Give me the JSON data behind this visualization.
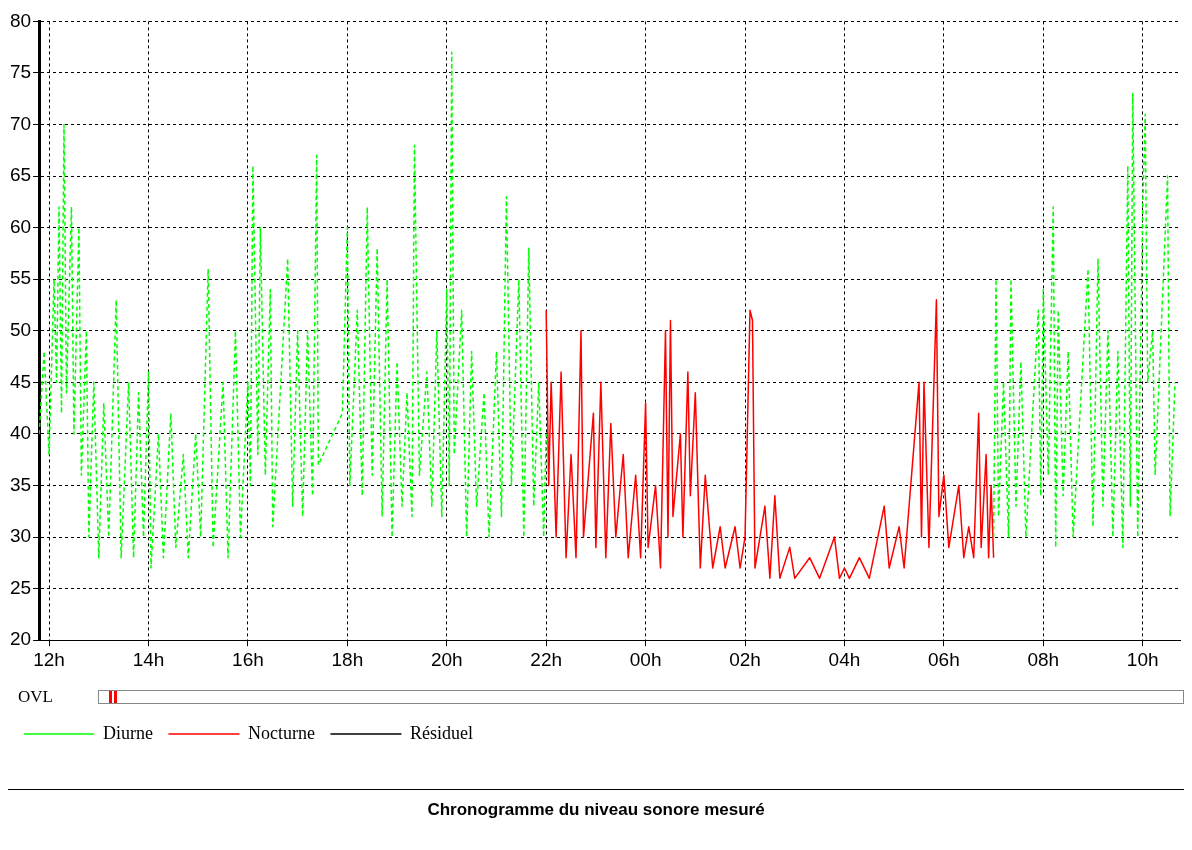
{
  "chart_data": {
    "type": "line",
    "title": "Chronogramme du niveau sonore mesuré",
    "annotations": [
      "OVL"
    ],
    "xlim": [
      "--01-01T11:48",
      "--01-02T10:45"
    ],
    "xticks": [
      {
        "value": "--01-01T12:00",
        "label": "12h"
      },
      {
        "value": "--01-01T14:00",
        "label": "14h"
      },
      {
        "value": "--01-01T16:00",
        "label": "16h"
      },
      {
        "value": "--01-01T18:00",
        "label": "18h"
      },
      {
        "value": "--01-01T20:00",
        "label": "20h"
      },
      {
        "value": "--01-01T22:00",
        "label": "22h"
      },
      {
        "value": "--01-02T00:00",
        "label": "00h"
      },
      {
        "value": "--01-02T02:00",
        "label": "02h"
      },
      {
        "value": "--01-02T04:00",
        "label": "04h"
      },
      {
        "value": "--01-02T06:00",
        "label": "06h"
      },
      {
        "value": "--01-02T08:00",
        "label": "08h"
      },
      {
        "value": "--01-02T10:00",
        "label": "10h"
      }
    ],
    "ylim": [
      20,
      80
    ],
    "yticks": [
      20,
      25,
      30,
      35,
      40,
      45,
      50,
      55,
      60,
      65,
      70,
      75,
      80
    ],
    "grid": true,
    "legend": "bottom",
    "marker": "none",
    "series": [
      {
        "name": "Diurne",
        "color": "#00ff00",
        "line_style": "dashed",
        "x": [
          "--01-01T11:48",
          "--01-01T11:54",
          "--01-01T12:00",
          "--01-01T12:06",
          "--01-01T12:09",
          "--01-01T12:12",
          "--01-01T12:15",
          "--01-01T12:18",
          "--01-01T12:21",
          "--01-01T12:27",
          "--01-01T12:30",
          "--01-01T12:36",
          "--01-01T12:39",
          "--01-01T12:45",
          "--01-01T12:48",
          "--01-01T12:54",
          "--01-01T13:00",
          "--01-01T13:06",
          "--01-01T13:12",
          "--01-01T13:21",
          "--01-01T13:27",
          "--01-01T13:36",
          "--01-01T13:42",
          "--01-01T13:48",
          "--01-01T13:54",
          "--01-01T14:00",
          "--01-01T14:03",
          "--01-01T14:12",
          "--01-01T14:18",
          "--01-01T14:27",
          "--01-01T14:33",
          "--01-01T14:42",
          "--01-01T14:48",
          "--01-01T14:57",
          "--01-01T15:03",
          "--01-01T15:12",
          "--01-01T15:18",
          "--01-01T15:30",
          "--01-01T15:36",
          "--01-01T15:45",
          "--01-01T15:51",
          "--01-01T16:00",
          "--01-01T16:03",
          "--01-01T16:06",
          "--01-01T16:12",
          "--01-01T16:15",
          "--01-01T16:21",
          "--01-01T16:27",
          "--01-01T16:30",
          "--01-01T16:48",
          "--01-01T16:54",
          "--01-01T17:00",
          "--01-01T17:06",
          "--01-01T17:12",
          "--01-01T17:18",
          "--01-01T17:23",
          "--01-01T17:25",
          "--01-01T17:54",
          "--01-01T18:00",
          "--01-01T18:03",
          "--01-01T18:12",
          "--01-01T18:18",
          "--01-01T18:24",
          "--01-01T18:30",
          "--01-01T18:36",
          "--01-01T18:42",
          "--01-01T18:48",
          "--01-01T18:54",
          "--01-01T19:00",
          "--01-01T19:06",
          "--01-01T19:12",
          "--01-01T19:18",
          "--01-01T19:21",
          "--01-01T19:27",
          "--01-01T19:36",
          "--01-01T19:42",
          "--01-01T19:48",
          "--01-01T19:54",
          "--01-01T20:00",
          "--01-01T20:03",
          "--01-01T20:06",
          "--01-01T20:09",
          "--01-01T20:18",
          "--01-01T20:24",
          "--01-01T20:30",
          "--01-01T20:36",
          "--01-01T20:45",
          "--01-01T20:51",
          "--01-01T21:00",
          "--01-01T21:06",
          "--01-01T21:12",
          "--01-01T21:18",
          "--01-01T21:27",
          "--01-01T21:33",
          "--01-01T21:39",
          "--01-01T21:45",
          "--01-01T21:51",
          "--01-01T21:57",
          "--01-01T22:00",
          "--01-02T02:00",
          "--01-02T07:00",
          "--01-02T07:03",
          "--01-02T07:06",
          "--01-02T07:12",
          "--01-02T07:18",
          "--01-02T07:21",
          "--01-02T07:27",
          "--01-02T07:33",
          "--01-02T07:39",
          "--01-02T07:54",
          "--01-02T07:57",
          "--01-02T08:00",
          "--01-02T08:06",
          "--01-02T08:12",
          "--01-02T08:15",
          "--01-02T08:18",
          "--01-02T08:24",
          "--01-02T08:30",
          "--01-02T08:36",
          "--01-02T08:54",
          "--01-02T09:00",
          "--01-02T09:06",
          "--01-02T09:12",
          "--01-02T09:18",
          "--01-02T09:24",
          "--01-02T09:30",
          "--01-02T09:36",
          "--01-02T09:42",
          "--01-02T09:45",
          "--01-02T09:48",
          "--01-02T09:54",
          "--01-02T10:00",
          "--01-02T10:03",
          "--01-02T10:06",
          "--01-02T10:12",
          "--01-02T10:15",
          "--01-02T10:30",
          "--01-02T10:33",
          "--01-02T10:39"
        ],
        "values": [
          40,
          48,
          38,
          55,
          45,
          62,
          42,
          70,
          44,
          62,
          40,
          60,
          36,
          50,
          30,
          45,
          28,
          43,
          30,
          53,
          28,
          45,
          28,
          44,
          30,
          46,
          27,
          40,
          28,
          42,
          29,
          38,
          28,
          40,
          30,
          56,
          29,
          45,
          28,
          50,
          30,
          45,
          35,
          66,
          38,
          60,
          36,
          54,
          31,
          57,
          33,
          50,
          32,
          50,
          34,
          67,
          37,
          42,
          60,
          35,
          52,
          34,
          62,
          36,
          58,
          32,
          55,
          30,
          47,
          33,
          44,
          32,
          68,
          36,
          46,
          33,
          50,
          32,
          54,
          35,
          77,
          38,
          52,
          30,
          48,
          33,
          44,
          30,
          48,
          32,
          63,
          35,
          55,
          30,
          58,
          33,
          45,
          30,
          40,
          null,
          30,
          55,
          32,
          45,
          30,
          55,
          33,
          47,
          30,
          52,
          34,
          54,
          36,
          62,
          29,
          52,
          34,
          48,
          30,
          56,
          31,
          57,
          33,
          50,
          30,
          48,
          29,
          66,
          33,
          73,
          30,
          62,
          71,
          45,
          50,
          36,
          65,
          32,
          45
        ]
      },
      {
        "name": "Nocturne",
        "color": "#ff0000",
        "line_style": "solid",
        "x": [
          "--01-01T22:00",
          "--01-01T22:03",
          "--01-01T22:06",
          "--01-01T22:12",
          "--01-01T22:18",
          "--01-01T22:24",
          "--01-01T22:30",
          "--01-01T22:36",
          "--01-01T22:42",
          "--01-01T22:45",
          "--01-01T22:57",
          "--01-01T23:00",
          "--01-01T23:06",
          "--01-01T23:12",
          "--01-01T23:18",
          "--01-01T23:24",
          "--01-01T23:33",
          "--01-01T23:39",
          "--01-01T23:48",
          "--01-01T23:54",
          "--01-02T00:00",
          "--01-02T00:03",
          "--01-02T00:12",
          "--01-02T00:18",
          "--01-02T00:24",
          "--01-02T00:27",
          "--01-02T00:30",
          "--01-02T00:33",
          "--01-02T00:42",
          "--01-02T00:45",
          "--01-02T00:51",
          "--01-02T00:54",
          "--01-02T01:00",
          "--01-02T01:06",
          "--01-02T01:12",
          "--01-02T01:21",
          "--01-02T01:30",
          "--01-02T01:36",
          "--01-02T01:48",
          "--01-02T01:54",
          "--01-02T02:00",
          "--01-02T02:06",
          "--01-02T02:09",
          "--01-02T02:12",
          "--01-02T02:24",
          "--01-02T02:30",
          "--01-02T02:36",
          "--01-02T02:42",
          "--01-02T02:54",
          "--01-02T03:00",
          "--01-02T03:18",
          "--01-02T03:30",
          "--01-02T03:48",
          "--01-02T03:54",
          "--01-02T04:00",
          "--01-02T04:06",
          "--01-02T04:18",
          "--01-02T04:30",
          "--01-02T04:48",
          "--01-02T04:54",
          "--01-02T05:06",
          "--01-02T05:12",
          "--01-02T05:30",
          "--01-02T05:33",
          "--01-02T05:36",
          "--01-02T05:42",
          "--01-02T05:51",
          "--01-02T05:54",
          "--01-02T06:00",
          "--01-02T06:06",
          "--01-02T06:18",
          "--01-02T06:24",
          "--01-02T06:30",
          "--01-02T06:36",
          "--01-02T06:42",
          "--01-02T06:45",
          "--01-02T06:51",
          "--01-02T06:54",
          "--01-02T06:57",
          "--01-02T07:00"
        ],
        "values": [
          52,
          35,
          45,
          30,
          46,
          28,
          38,
          28,
          50,
          30,
          42,
          29,
          45,
          28,
          41,
          30,
          38,
          28,
          36,
          28,
          43,
          29,
          35,
          27,
          50,
          30,
          51,
          32,
          40,
          30,
          46,
          34,
          44,
          27,
          36,
          27,
          31,
          27,
          31,
          27,
          30,
          52,
          51,
          27,
          33,
          26,
          34,
          26,
          29,
          26,
          28,
          26,
          30,
          26,
          27,
          26,
          28,
          26,
          33,
          27,
          31,
          27,
          45,
          30,
          45,
          29,
          53,
          32,
          36,
          29,
          35,
          28,
          31,
          28,
          42,
          29,
          38,
          28,
          35,
          28
        ]
      },
      {
        "name": "Résiduel",
        "color": "#000000",
        "line_style": "solid"
      }
    ]
  }
}
